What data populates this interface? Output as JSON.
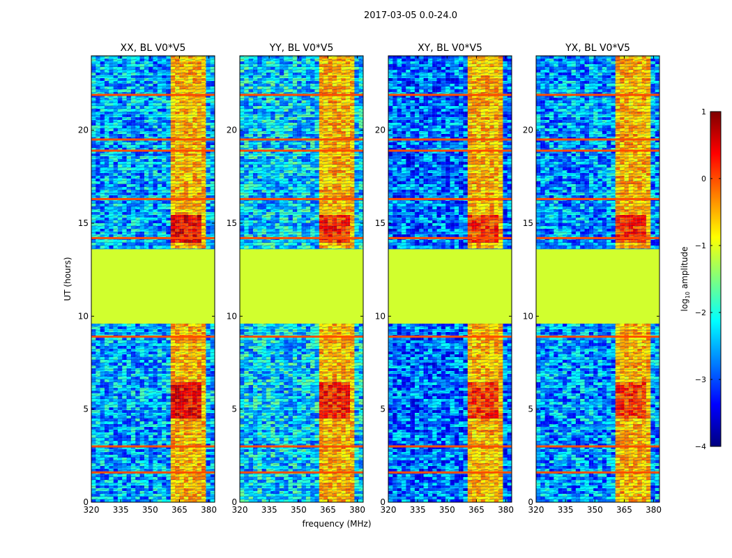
{
  "figure": {
    "suptitle": "2017-03-05 0.0-24.0",
    "xlabel": "frequency (MHz)",
    "ylabel": "UT (hours)"
  },
  "colorbar": {
    "label_main": "log",
    "label_sub": "10",
    "label_rest": " amplitude",
    "range": [
      -4,
      1
    ],
    "ticks": [
      1,
      0,
      -1,
      -2,
      -3,
      -4
    ],
    "tick_labels": [
      "1",
      "0",
      "−1",
      "−2",
      "−3",
      "−4"
    ],
    "colormap": "jet",
    "colors": [
      "#00007f",
      "#0000ff",
      "#007fff",
      "#00ffff",
      "#7fff7f",
      "#ffff00",
      "#ff7f00",
      "#ff0000",
      "#7f0000"
    ]
  },
  "chart_data": [
    {
      "type": "heatmap",
      "title": "XX, BL V0*V5",
      "xlabel": "frequency (MHz)",
      "ylabel": "UT (hours)",
      "xlim": [
        320,
        383
      ],
      "ylim": [
        0,
        24
      ],
      "xticks": [
        320,
        335,
        350,
        365,
        380
      ],
      "yticks": [
        0,
        5,
        10,
        15,
        20
      ],
      "flagged_band_hours": [
        9.6,
        13.6
      ],
      "flagged_value": -1.1,
      "rfi_band_mhz": [
        361,
        378
      ],
      "rfi_lines_hours": [
        1.6,
        3.0,
        8.9,
        14.2,
        16.3,
        18.9,
        19.5,
        21.9
      ],
      "peak_hours": [
        [
          4.5,
          6.5
        ],
        [
          14.0,
          15.5
        ]
      ],
      "peak_value": 0.8,
      "background_value": -2.5
    },
    {
      "type": "heatmap",
      "title": "YY, BL V0*V5",
      "xlabel": "frequency (MHz)",
      "ylabel": "UT (hours)",
      "xlim": [
        320,
        383
      ],
      "ylim": [
        0,
        24
      ],
      "xticks": [
        320,
        335,
        350,
        365,
        380
      ],
      "yticks": [
        0,
        5,
        10,
        15,
        20
      ],
      "flagged_band_hours": [
        9.6,
        13.6
      ],
      "flagged_value": -1.1,
      "rfi_band_mhz": [
        361,
        378
      ],
      "rfi_lines_hours": [
        1.6,
        3.0,
        8.9,
        14.2,
        16.3,
        18.9,
        19.5,
        21.9
      ],
      "peak_hours": [
        [
          4.5,
          6.5
        ],
        [
          14.0,
          15.5
        ]
      ],
      "peak_value": 0.6,
      "background_value": -2.3
    },
    {
      "type": "heatmap",
      "title": "XY, BL V0*V5",
      "xlabel": "frequency (MHz)",
      "ylabel": "UT (hours)",
      "xlim": [
        320,
        383
      ],
      "ylim": [
        0,
        24
      ],
      "xticks": [
        320,
        335,
        350,
        365,
        380
      ],
      "yticks": [
        0,
        5,
        10,
        15,
        20
      ],
      "flagged_band_hours": [
        9.6,
        13.6
      ],
      "flagged_value": -1.1,
      "rfi_band_mhz": [
        361,
        378
      ],
      "rfi_lines_hours": [
        1.6,
        3.0,
        8.9,
        14.2,
        16.3,
        18.9,
        19.5,
        21.9
      ],
      "peak_hours": [
        [
          4.5,
          6.5
        ],
        [
          14.0,
          15.5
        ]
      ],
      "peak_value": 0.5,
      "background_value": -2.8
    },
    {
      "type": "heatmap",
      "title": "YX, BL V0*V5",
      "xlabel": "frequency (MHz)",
      "ylabel": "UT (hours)",
      "xlim": [
        320,
        383
      ],
      "ylim": [
        0,
        24
      ],
      "xticks": [
        320,
        335,
        350,
        365,
        380
      ],
      "yticks": [
        0,
        5,
        10,
        15,
        20
      ],
      "flagged_band_hours": [
        9.6,
        13.6
      ],
      "flagged_value": -1.1,
      "rfi_band_mhz": [
        361,
        378
      ],
      "rfi_lines_hours": [
        1.6,
        3.0,
        8.9,
        14.2,
        16.3,
        18.9,
        19.5,
        21.9
      ],
      "peak_hours": [
        [
          4.5,
          6.5
        ],
        [
          14.0,
          15.5
        ]
      ],
      "peak_value": 0.5,
      "background_value": -2.6
    }
  ]
}
